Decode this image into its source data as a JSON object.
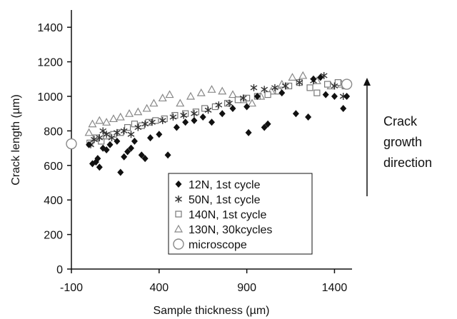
{
  "chart_data": {
    "type": "scatter",
    "xlabel": "Sample thickness (µm)",
    "ylabel": "Crack length (µm)",
    "xlim": [
      -100,
      1500
    ],
    "ylim": [
      0,
      1500
    ],
    "xticks": [
      -100,
      400,
      900,
      1400
    ],
    "yticks": [
      0,
      200,
      400,
      600,
      800,
      1000,
      1200,
      1400
    ],
    "legend_position": "bottom-right",
    "grid": false,
    "annotation": {
      "lines": [
        "Crack",
        "growth",
        "direction"
      ],
      "arrow": "up"
    },
    "series": [
      {
        "name": "12N, 1st cycle",
        "marker": "diamond",
        "color": "#111111",
        "points": [
          [
            0,
            720
          ],
          [
            20,
            610
          ],
          [
            40,
            620
          ],
          [
            60,
            590
          ],
          [
            50,
            640
          ],
          [
            80,
            700
          ],
          [
            100,
            690
          ],
          [
            120,
            720
          ],
          [
            160,
            740
          ],
          [
            180,
            560
          ],
          [
            200,
            650
          ],
          [
            220,
            680
          ],
          [
            240,
            700
          ],
          [
            260,
            740
          ],
          [
            300,
            660
          ],
          [
            320,
            640
          ],
          [
            350,
            760
          ],
          [
            400,
            780
          ],
          [
            450,
            660
          ],
          [
            500,
            820
          ],
          [
            550,
            850
          ],
          [
            600,
            860
          ],
          [
            650,
            880
          ],
          [
            700,
            850
          ],
          [
            760,
            900
          ],
          [
            820,
            930
          ],
          [
            900,
            940
          ],
          [
            910,
            790
          ],
          [
            960,
            1000
          ],
          [
            1000,
            820
          ],
          [
            1020,
            840
          ],
          [
            1100,
            1020
          ],
          [
            1180,
            900
          ],
          [
            1250,
            880
          ],
          [
            1280,
            1100
          ],
          [
            1320,
            1110
          ],
          [
            1350,
            1010
          ],
          [
            1400,
            1000
          ],
          [
            1450,
            930
          ],
          [
            1470,
            1000
          ]
        ]
      },
      {
        "name": "50N, 1st cycle",
        "marker": "star",
        "color": "#333333",
        "points": [
          [
            10,
            720
          ],
          [
            30,
            750
          ],
          [
            60,
            760
          ],
          [
            80,
            800
          ],
          [
            100,
            780
          ],
          [
            130,
            760
          ],
          [
            160,
            790
          ],
          [
            200,
            800
          ],
          [
            240,
            780
          ],
          [
            280,
            820
          ],
          [
            320,
            840
          ],
          [
            360,
            850
          ],
          [
            420,
            860
          ],
          [
            480,
            880
          ],
          [
            540,
            890
          ],
          [
            600,
            900
          ],
          [
            680,
            920
          ],
          [
            740,
            950
          ],
          [
            800,
            960
          ],
          [
            880,
            990
          ],
          [
            940,
            1050
          ],
          [
            1000,
            1040
          ],
          [
            1060,
            1050
          ],
          [
            1120,
            1060
          ],
          [
            1200,
            1080
          ],
          [
            1280,
            1090
          ],
          [
            1340,
            1120
          ],
          [
            1400,
            1060
          ],
          [
            1450,
            1000
          ]
        ]
      },
      {
        "name": "140N, 1st cycle",
        "marker": "square",
        "color": "#777777",
        "points": [
          [
            5,
            730
          ],
          [
            40,
            760
          ],
          [
            70,
            740
          ],
          [
            100,
            770
          ],
          [
            140,
            780
          ],
          [
            180,
            790
          ],
          [
            220,
            820
          ],
          [
            260,
            840
          ],
          [
            300,
            830
          ],
          [
            340,
            850
          ],
          [
            380,
            860
          ],
          [
            430,
            870
          ],
          [
            490,
            890
          ],
          [
            550,
            900
          ],
          [
            610,
            910
          ],
          [
            660,
            930
          ],
          [
            720,
            940
          ],
          [
            790,
            960
          ],
          [
            850,
            980
          ],
          [
            900,
            990
          ],
          [
            960,
            1000
          ],
          [
            1020,
            1010
          ],
          [
            1080,
            1030
          ],
          [
            1140,
            1060
          ],
          [
            1200,
            1080
          ],
          [
            1260,
            1050
          ],
          [
            1300,
            1020
          ],
          [
            1360,
            1070
          ],
          [
            1420,
            1080
          ],
          [
            1460,
            1060
          ]
        ]
      },
      {
        "name": "130N, 30kcycles",
        "marker": "triangle",
        "color": "#888888",
        "points": [
          [
            0,
            790
          ],
          [
            20,
            840
          ],
          [
            60,
            860
          ],
          [
            100,
            850
          ],
          [
            140,
            870
          ],
          [
            180,
            880
          ],
          [
            230,
            900
          ],
          [
            280,
            910
          ],
          [
            330,
            930
          ],
          [
            370,
            960
          ],
          [
            420,
            990
          ],
          [
            460,
            1010
          ],
          [
            520,
            960
          ],
          [
            580,
            1000
          ],
          [
            640,
            1020
          ],
          [
            700,
            1040
          ],
          [
            760,
            1030
          ],
          [
            820,
            1010
          ],
          [
            880,
            980
          ],
          [
            930,
            960
          ],
          [
            980,
            1000
          ],
          [
            1040,
            1030
          ],
          [
            1100,
            1070
          ],
          [
            1160,
            1110
          ],
          [
            1220,
            1120
          ],
          [
            1300,
            1090
          ],
          [
            1380,
            1060
          ],
          [
            1440,
            1070
          ]
        ]
      },
      {
        "name": "microscope",
        "marker": "circle",
        "color": "#888888",
        "points": [
          [
            -100,
            725
          ],
          [
            1470,
            1070
          ]
        ]
      }
    ]
  }
}
